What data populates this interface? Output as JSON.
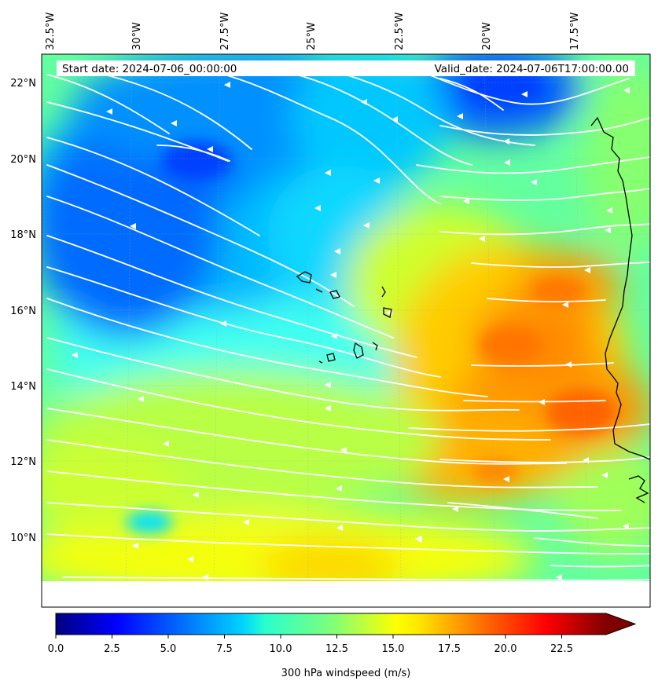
{
  "map": {
    "start_label": "Start date: 2024-07-06_00:00:00",
    "valid_label": "Valid_date: 2024-07-06T17:00:00.00",
    "lon_labels": [
      "32.5°W",
      "30°W",
      "27.5°W",
      "25°W",
      "22.5°W",
      "20°W",
      "17.5°W"
    ],
    "lat_labels": [
      "22°N",
      "20°N",
      "18°N",
      "16°N",
      "14°N",
      "12°N",
      "10°N"
    ],
    "lon_range": [
      -33.0,
      -16.0
    ],
    "lat_range": [
      8.8,
      22.7
    ],
    "streamline_color": "#ffffff",
    "coastline_color": "#000000"
  },
  "colorbar": {
    "title": "300 hPa windspeed (m/s)",
    "ticks": [
      "0.0",
      "2.5",
      "5.0",
      "7.5",
      "10.0",
      "12.5",
      "15.0",
      "17.5",
      "20.0",
      "22.5"
    ],
    "min": 0,
    "max": 25.5,
    "colormap": "jet",
    "extend": "max"
  }
}
